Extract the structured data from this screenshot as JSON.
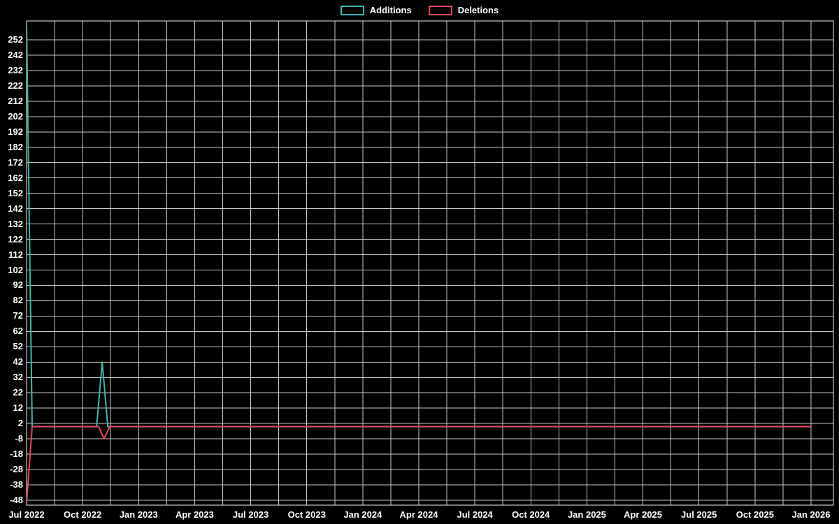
{
  "legend": {
    "items": [
      {
        "label": "Additions"
      },
      {
        "label": "Deletions"
      }
    ]
  },
  "chart_data": {
    "type": "line",
    "title": "",
    "legend_position": "top-center",
    "background_color": "#000000",
    "grid_color": "#c9c9c9",
    "frame_color": "#f2f2f2",
    "text_color": "#ffffff",
    "x_axis": {
      "tick_labels": [
        "Jul 2022",
        "Oct 2022",
        "Jan 2023",
        "Apr 2023",
        "Jul 2023",
        "Oct 2023",
        "Jan 2024",
        "Apr 2024",
        "Jul 2024",
        "Oct 2024",
        "Jan 2025",
        "Apr 2025",
        "Jul 2025",
        "Oct 2025",
        "Jan 2026"
      ],
      "tick_interval_months": 3,
      "grid_interval_months": 1.5,
      "total_months": 42
    },
    "y_axis": {
      "min": -48,
      "max": 252,
      "tick_step": 10,
      "ticks": [
        252,
        242,
        232,
        222,
        212,
        202,
        192,
        182,
        172,
        162,
        152,
        142,
        132,
        122,
        112,
        102,
        92,
        82,
        72,
        62,
        52,
        42,
        32,
        22,
        12,
        2,
        -8,
        -18,
        -28,
        -38,
        -48
      ]
    },
    "point_format": "[months_since_jul_2022, value]",
    "series": [
      {
        "name": "Additions",
        "color": "#40b5b0",
        "points": [
          [
            0,
            262
          ],
          [
            0.3,
            0
          ],
          [
            3.75,
            0
          ],
          [
            4.05,
            42
          ],
          [
            4.35,
            0
          ],
          [
            42,
            0
          ]
        ]
      },
      {
        "name": "Deletions",
        "color": "#e2485c",
        "points": [
          [
            0,
            -50
          ],
          [
            0.3,
            0
          ],
          [
            3.85,
            0
          ],
          [
            4.15,
            -8
          ],
          [
            4.45,
            0
          ],
          [
            42,
            0
          ]
        ]
      }
    ]
  }
}
